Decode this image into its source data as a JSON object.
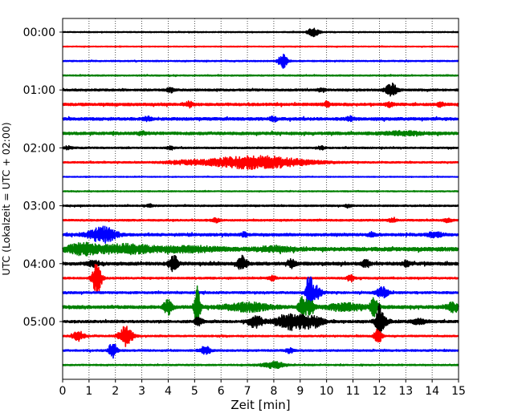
{
  "chart_data": {
    "type": "line",
    "title": "",
    "xlabel": "Zeit  [min]",
    "ylabel": "UTC (Lokalzeit = UTC + 02:00)",
    "xlim": [
      0,
      15
    ],
    "x_ticks": [
      "0",
      "1",
      "2",
      "3",
      "4",
      "5",
      "6",
      "7",
      "8",
      "9",
      "10",
      "11",
      "12",
      "13",
      "14",
      "15"
    ],
    "y_tick_labels": [
      "00:00",
      "01:00",
      "02:00",
      "03:00",
      "04:00",
      "05:00"
    ],
    "grid": "vertical dotted at each minute",
    "trace_interval_min": 15,
    "trace_colors": [
      "#000000",
      "#ff0000",
      "#0000ff",
      "#008000"
    ],
    "traces": [
      {
        "start": "00:00",
        "color": "#000000",
        "noise": 0.6,
        "events": [
          [
            9.5,
            5,
            0.15
          ]
        ]
      },
      {
        "start": "00:15",
        "color": "#ff0000",
        "noise": 0.5,
        "events": []
      },
      {
        "start": "00:30",
        "color": "#0000ff",
        "noise": 0.7,
        "events": [
          [
            8.35,
            9,
            0.12
          ]
        ]
      },
      {
        "start": "00:45",
        "color": "#008000",
        "noise": 0.7,
        "events": []
      },
      {
        "start": "01:00",
        "color": "#000000",
        "noise": 1.2,
        "events": [
          [
            12.45,
            8,
            0.15
          ],
          [
            4.1,
            2.5,
            0.1
          ],
          [
            9.8,
            2,
            0.1
          ]
        ]
      },
      {
        "start": "01:15",
        "color": "#ff0000",
        "noise": 1.5,
        "events": [
          [
            4.8,
            3,
            0.1
          ],
          [
            10.0,
            3,
            0.1
          ],
          [
            12.4,
            2.5,
            0.1
          ],
          [
            14.3,
            2.5,
            0.1
          ]
        ]
      },
      {
        "start": "01:30",
        "color": "#0000ff",
        "noise": 1.6,
        "events": [
          [
            3.2,
            2.5,
            0.1
          ],
          [
            8.0,
            2.5,
            0.1
          ],
          [
            10.9,
            2.5,
            0.1
          ]
        ]
      },
      {
        "start": "01:45",
        "color": "#008000",
        "noise": 1.6,
        "events": [
          [
            12.9,
            2,
            0.5
          ],
          [
            3.0,
            2,
            0.1
          ]
        ]
      },
      {
        "start": "02:00",
        "color": "#000000",
        "noise": 0.9,
        "events": [
          [
            0.2,
            2,
            0.1
          ],
          [
            4.1,
            2,
            0.1
          ],
          [
            9.8,
            2,
            0.1
          ]
        ]
      },
      {
        "start": "02:15",
        "color": "#ff0000",
        "noise": 0.9,
        "events": [
          [
            7.3,
            8,
            1.3
          ],
          [
            4.5,
            1.5,
            0.5
          ]
        ]
      },
      {
        "start": "02:30",
        "color": "#0000ff",
        "noise": 0.5,
        "events": []
      },
      {
        "start": "02:45",
        "color": "#008000",
        "noise": 0.6,
        "events": []
      },
      {
        "start": "03:00",
        "color": "#000000",
        "noise": 0.9,
        "events": [
          [
            3.3,
            2,
            0.1
          ],
          [
            10.8,
            2,
            0.1
          ]
        ]
      },
      {
        "start": "03:15",
        "color": "#ff0000",
        "noise": 1.0,
        "events": [
          [
            5.8,
            2.5,
            0.1
          ],
          [
            12.5,
            2.5,
            0.1
          ],
          [
            14.6,
            3,
            0.1
          ]
        ]
      },
      {
        "start": "03:30",
        "color": "#0000ff",
        "noise": 1.5,
        "events": [
          [
            1.5,
            10,
            0.35
          ],
          [
            6.9,
            2.5,
            0.1
          ],
          [
            11.7,
            2.5,
            0.1
          ],
          [
            14.1,
            3,
            0.2
          ]
        ]
      },
      {
        "start": "03:45",
        "color": "#008000",
        "noise": 2.2,
        "events": [
          [
            0.7,
            6,
            0.4
          ],
          [
            2.3,
            5,
            0.8
          ],
          [
            4.8,
            3,
            0.8
          ],
          [
            8.0,
            2.5,
            0.5
          ]
        ]
      },
      {
        "start": "04:00",
        "color": "#000000",
        "noise": 1.8,
        "events": [
          [
            1.2,
            3.5,
            0.15
          ],
          [
            4.2,
            10,
            0.12
          ],
          [
            6.8,
            9,
            0.12
          ],
          [
            8.7,
            5,
            0.1
          ],
          [
            11.5,
            4.5,
            0.1
          ],
          [
            13.0,
            3,
            0.1
          ]
        ]
      },
      {
        "start": "04:15",
        "color": "#ff0000",
        "noise": 1.0,
        "events": [
          [
            1.3,
            20,
            0.12
          ],
          [
            7.95,
            3,
            0.1
          ],
          [
            10.9,
            4,
            0.1
          ]
        ]
      },
      {
        "start": "04:30",
        "color": "#0000ff",
        "noise": 1.2,
        "events": [
          [
            9.35,
            26,
            0.08
          ],
          [
            9.6,
            8,
            0.15
          ],
          [
            12.1,
            7,
            0.15
          ]
        ]
      },
      {
        "start": "04:45",
        "color": "#008000",
        "noise": 1.8,
        "events": [
          [
            4.0,
            9,
            0.12
          ],
          [
            5.1,
            26,
            0.08
          ],
          [
            7.0,
            5,
            0.6
          ],
          [
            9.1,
            14,
            0.1
          ],
          [
            9.4,
            9,
            0.1
          ],
          [
            10.7,
            4,
            0.5
          ],
          [
            11.8,
            10,
            0.1
          ],
          [
            14.8,
            6,
            0.15
          ]
        ]
      },
      {
        "start": "05:00",
        "color": "#000000",
        "noise": 1.4,
        "events": [
          [
            5.15,
            6,
            0.1
          ],
          [
            7.3,
            7,
            0.2
          ],
          [
            8.8,
            10,
            0.5
          ],
          [
            9.6,
            4,
            0.2
          ],
          [
            12.0,
            18,
            0.08
          ],
          [
            12.1,
            5,
            0.2
          ],
          [
            13.5,
            3,
            0.2
          ]
        ]
      },
      {
        "start": "05:15",
        "color": "#ff0000",
        "noise": 0.9,
        "events": [
          [
            0.6,
            6,
            0.15
          ],
          [
            2.3,
            8,
            0.15
          ],
          [
            2.5,
            7,
            0.15
          ],
          [
            11.95,
            9,
            0.1
          ]
        ]
      },
      {
        "start": "05:30",
        "color": "#0000ff",
        "noise": 1.0,
        "events": [
          [
            1.9,
            12,
            0.1
          ],
          [
            5.4,
            5,
            0.15
          ],
          [
            8.6,
            3,
            0.1
          ]
        ]
      },
      {
        "start": "05:45",
        "color": "#008000",
        "noise": 0.8,
        "events": [
          [
            8.0,
            4,
            0.3
          ]
        ]
      }
    ]
  }
}
